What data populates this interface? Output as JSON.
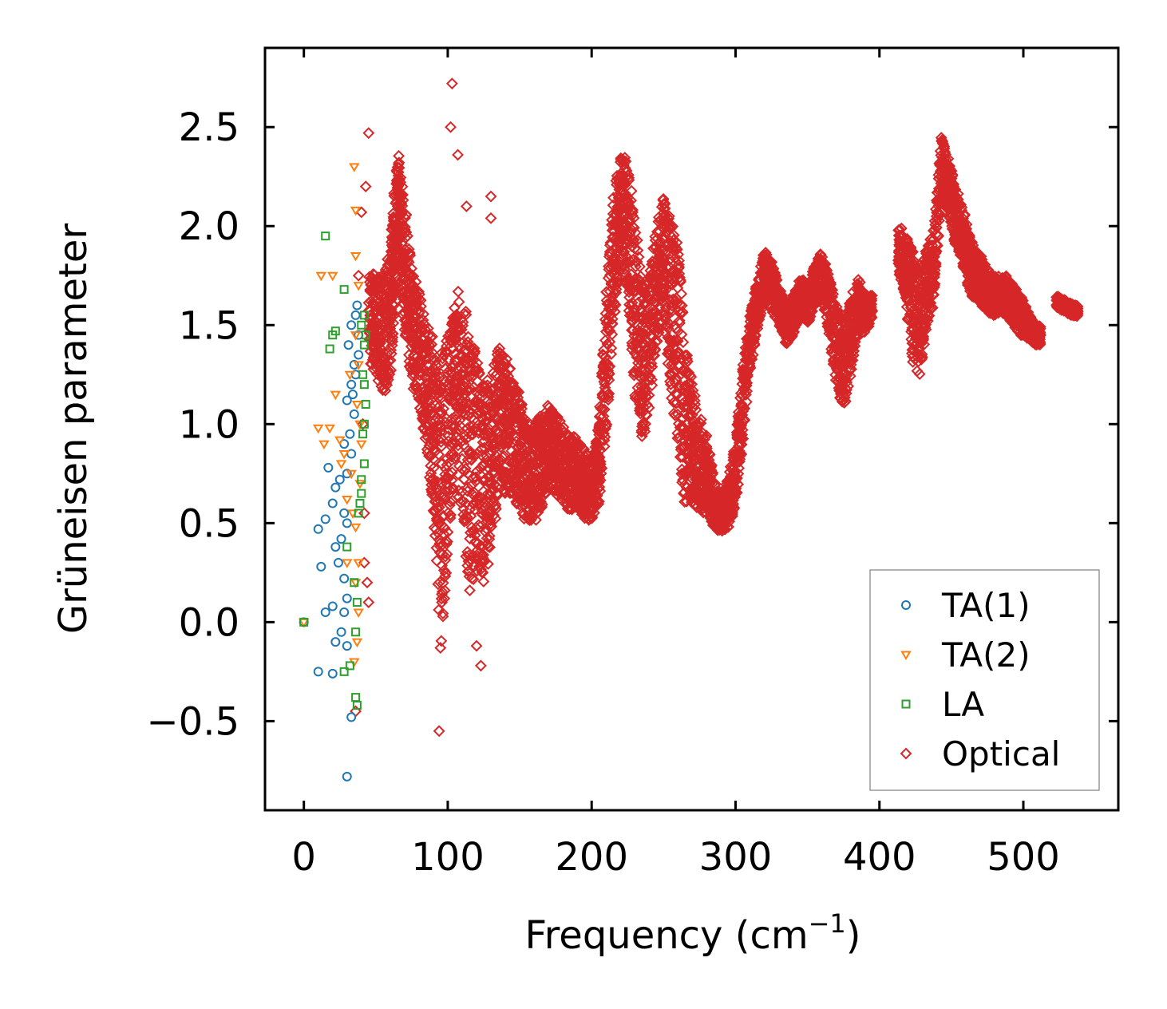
{
  "chart_data": {
    "type": "scatter",
    "title": "",
    "xlabel": "Frequency (cm",
    "xlabel_sup": "−1",
    "xlabel_close": ")",
    "ylabel": "Grüneisen parameter",
    "xlim": [
      -27,
      566
    ],
    "ylim": [
      -0.95,
      2.9
    ],
    "xticks": [
      0,
      100,
      200,
      300,
      400,
      500
    ],
    "xtick_labels": [
      "0",
      "100",
      "200",
      "300",
      "400",
      "500"
    ],
    "yticks": [
      -0.5,
      0.0,
      0.5,
      1.0,
      1.5,
      2.0,
      2.5
    ],
    "ytick_labels": [
      "−0.5",
      "0.0",
      "0.5",
      "1.0",
      "1.5",
      "2.0",
      "2.5"
    ],
    "grid": false,
    "legend_position": "lower-right",
    "series": [
      {
        "name": "TA(1)",
        "marker": "circle",
        "color": "#1f77b4",
        "points": [
          [
            0,
            0
          ],
          [
            10,
            -0.25
          ],
          [
            20,
            -0.26
          ],
          [
            33,
            -0.48
          ],
          [
            30,
            -0.78
          ],
          [
            12,
            0.28
          ],
          [
            10,
            0.47
          ],
          [
            15,
            0.52
          ],
          [
            17,
            0.78
          ],
          [
            20,
            0.6
          ],
          [
            22,
            0.68
          ],
          [
            25,
            0.72
          ],
          [
            28,
            0.55
          ],
          [
            30,
            0.5
          ],
          [
            26,
            0.42
          ],
          [
            22,
            0.38
          ],
          [
            24,
            0.3
          ],
          [
            28,
            0.22
          ],
          [
            30,
            0.12
          ],
          [
            20,
            0.08
          ],
          [
            15,
            0.05
          ],
          [
            28,
            0.05
          ],
          [
            26,
            -0.05
          ],
          [
            22,
            -0.1
          ],
          [
            30,
            -0.12
          ],
          [
            32,
            0.95
          ],
          [
            30,
            1.12
          ],
          [
            33,
            1.2
          ],
          [
            35,
            1.3
          ],
          [
            31,
            1.4
          ],
          [
            33,
            1.5
          ],
          [
            36,
            1.55
          ],
          [
            38,
            1.45
          ],
          [
            35,
            1.05
          ],
          [
            33,
            0.85
          ],
          [
            30,
            0.75
          ],
          [
            28,
            0.9
          ],
          [
            34,
            1.15
          ],
          [
            36,
            1.25
          ],
          [
            38,
            1.35
          ],
          [
            37,
            1.6
          ]
        ]
      },
      {
        "name": "TA(2)",
        "marker": "triangle",
        "color": "#ff7f0e",
        "points": [
          [
            0,
            0
          ],
          [
            35,
            2.3
          ],
          [
            36,
            2.08
          ],
          [
            12,
            1.75
          ],
          [
            20,
            1.75
          ],
          [
            36,
            1.85
          ],
          [
            38,
            1.7
          ],
          [
            10,
            0.98
          ],
          [
            18,
            0.98
          ],
          [
            22,
            1.15
          ],
          [
            14,
            0.9
          ],
          [
            25,
            0.92
          ],
          [
            28,
            0.85
          ],
          [
            30,
            0.62
          ],
          [
            34,
            0.55
          ],
          [
            36,
            0.48
          ],
          [
            38,
            0.3
          ],
          [
            30,
            0.3
          ],
          [
            36,
            0.2
          ],
          [
            38,
            0.05
          ],
          [
            37,
            -0.1
          ],
          [
            35,
            -0.2
          ],
          [
            37,
            1.1
          ],
          [
            39,
            1.0
          ],
          [
            40,
            0.9
          ],
          [
            38,
            1.3
          ],
          [
            36,
            1.45
          ],
          [
            32,
            1.25
          ],
          [
            39,
            0.7
          ],
          [
            33,
            0.75
          ],
          [
            26,
            0.8
          ]
        ]
      },
      {
        "name": "LA",
        "marker": "square",
        "color": "#2ca02c",
        "points": [
          [
            0,
            0
          ],
          [
            15,
            1.95
          ],
          [
            20,
            1.45
          ],
          [
            18,
            1.38
          ],
          [
            22,
            1.47
          ],
          [
            28,
            1.68
          ],
          [
            30,
            0.38
          ],
          [
            35,
            0.2
          ],
          [
            37,
            0.1
          ],
          [
            36,
            -0.05
          ],
          [
            28,
            -0.25
          ],
          [
            32,
            -0.22
          ],
          [
            36,
            -0.38
          ],
          [
            37,
            -0.42
          ],
          [
            38,
            0.55
          ],
          [
            40,
            0.65
          ],
          [
            42,
            0.8
          ],
          [
            42,
            1.0
          ],
          [
            42,
            1.2
          ],
          [
            42,
            1.4
          ],
          [
            42,
            1.55
          ],
          [
            40,
            1.5
          ],
          [
            41,
            1.25
          ],
          [
            41,
            0.95
          ],
          [
            40,
            0.72
          ],
          [
            39,
            0.6
          ],
          [
            43,
            1.1
          ],
          [
            43,
            1.45
          ]
        ]
      },
      {
        "name": "Optical",
        "marker": "diamond",
        "color": "#d62728",
        "points": [
          [
            103,
            2.72
          ],
          [
            102,
            2.5
          ],
          [
            107,
            2.36
          ],
          [
            45,
            2.47
          ],
          [
            43,
            2.2
          ],
          [
            113,
            2.1
          ],
          [
            130,
            2.15
          ],
          [
            130,
            2.04
          ],
          [
            36,
            -0.45
          ],
          [
            120,
            -0.12
          ],
          [
            123,
            -0.22
          ],
          [
            94,
            -0.55
          ],
          [
            38,
            1.75
          ],
          [
            40,
            2.07
          ],
          [
            41,
            1.0
          ],
          [
            42,
            0.55
          ],
          [
            42,
            0.3
          ],
          [
            44,
            0.2
          ],
          [
            45,
            0.1
          ]
        ],
        "bands": [
          [
            [
              45,
              1.55,
              0.45
            ],
            [
              50,
              1.5,
              0.5
            ],
            [
              55,
              1.45,
              0.6
            ],
            [
              60,
              1.55,
              0.7
            ],
            [
              63,
              1.9,
              0.6
            ],
            [
              66,
              2.1,
              0.55
            ],
            [
              70,
              1.8,
              0.7
            ],
            [
              75,
              1.5,
              0.6
            ],
            [
              80,
              1.4,
              0.6
            ],
            [
              85,
              1.2,
              0.6
            ],
            [
              90,
              1.0,
              0.9
            ],
            [
              95,
              0.6,
              1.5
            ],
            [
              100,
              0.9,
              1.1
            ],
            [
              105,
              1.2,
              0.9
            ],
            [
              110,
              1.1,
              1.2
            ],
            [
              115,
              0.8,
              1.3
            ],
            [
              120,
              0.8,
              1.1
            ],
            [
              125,
              0.7,
              1.0
            ],
            [
              130,
              0.8,
              0.9
            ],
            [
              135,
              1.0,
              0.8
            ],
            [
              140,
              1.0,
              0.7
            ],
            [
              145,
              0.95,
              0.6
            ],
            [
              150,
              0.85,
              0.6
            ],
            [
              155,
              0.75,
              0.5
            ],
            [
              160,
              0.75,
              0.5
            ],
            [
              165,
              0.8,
              0.5
            ],
            [
              170,
              0.9,
              0.4
            ],
            [
              175,
              0.85,
              0.4
            ],
            [
              180,
              0.8,
              0.4
            ],
            [
              185,
              0.75,
              0.4
            ],
            [
              190,
              0.75,
              0.35
            ],
            [
              195,
              0.7,
              0.35
            ],
            [
              200,
              0.65,
              0.3
            ],
            [
              205,
              0.8,
              0.4
            ],
            [
              210,
              1.3,
              0.7
            ],
            [
              215,
              1.8,
              0.7
            ],
            [
              220,
              2.1,
              0.5
            ],
            [
              225,
              2.0,
              0.7
            ],
            [
              230,
              1.6,
              0.9
            ],
            [
              235,
              1.3,
              0.8
            ],
            [
              240,
              1.4,
              0.7
            ],
            [
              245,
              1.7,
              0.6
            ],
            [
              250,
              1.85,
              0.6
            ],
            [
              255,
              1.6,
              0.9
            ],
            [
              260,
              1.4,
              1.0
            ],
            [
              265,
              1.0,
              0.9
            ],
            [
              270,
              0.9,
              0.6
            ],
            [
              275,
              0.8,
              0.5
            ],
            [
              280,
              0.75,
              0.4
            ],
            [
              285,
              0.6,
              0.25
            ],
            [
              290,
              0.55,
              0.2
            ],
            [
              295,
              0.6,
              0.25
            ],
            [
              300,
              0.75,
              0.35
            ],
            [
              305,
              1.1,
              0.4
            ],
            [
              310,
              1.4,
              0.3
            ],
            [
              315,
              1.6,
              0.25
            ],
            [
              320,
              1.75,
              0.25
            ],
            [
              325,
              1.7,
              0.25
            ],
            [
              330,
              1.6,
              0.2
            ],
            [
              335,
              1.5,
              0.2
            ],
            [
              340,
              1.55,
              0.2
            ],
            [
              345,
              1.65,
              0.2
            ],
            [
              350,
              1.6,
              0.2
            ],
            [
              355,
              1.7,
              0.2
            ],
            [
              360,
              1.75,
              0.25
            ],
            [
              365,
              1.6,
              0.3
            ],
            [
              370,
              1.4,
              0.4
            ],
            [
              375,
              1.3,
              0.5
            ],
            [
              380,
              1.45,
              0.4
            ],
            [
              385,
              1.6,
              0.3
            ],
            [
              390,
              1.55,
              0.2
            ],
            [
              395,
              1.6,
              0.15
            ]
          ],
          [
            [
              413,
              1.9,
              0.25
            ],
            [
              418,
              1.8,
              0.3
            ],
            [
              423,
              1.6,
              0.6
            ],
            [
              428,
              1.5,
              0.5
            ],
            [
              433,
              1.7,
              0.4
            ],
            [
              438,
              1.8,
              0.4
            ],
            [
              443,
              2.3,
              0.3
            ],
            [
              448,
              2.2,
              0.3
            ],
            [
              453,
              2.05,
              0.3
            ],
            [
              458,
              1.95,
              0.3
            ],
            [
              463,
              1.8,
              0.3
            ],
            [
              468,
              1.75,
              0.25
            ],
            [
              473,
              1.7,
              0.25
            ],
            [
              478,
              1.65,
              0.2
            ],
            [
              483,
              1.65,
              0.2
            ],
            [
              488,
              1.65,
              0.2
            ],
            [
              493,
              1.6,
              0.2
            ],
            [
              498,
              1.55,
              0.2
            ],
            [
              503,
              1.5,
              0.15
            ],
            [
              508,
              1.45,
              0.1
            ],
            [
              512,
              1.45,
              0.1
            ]
          ],
          [
            [
              523,
              1.62,
              0.06
            ],
            [
              528,
              1.6,
              0.06
            ],
            [
              533,
              1.58,
              0.06
            ],
            [
              538,
              1.57,
              0.05
            ]
          ]
        ]
      }
    ]
  }
}
